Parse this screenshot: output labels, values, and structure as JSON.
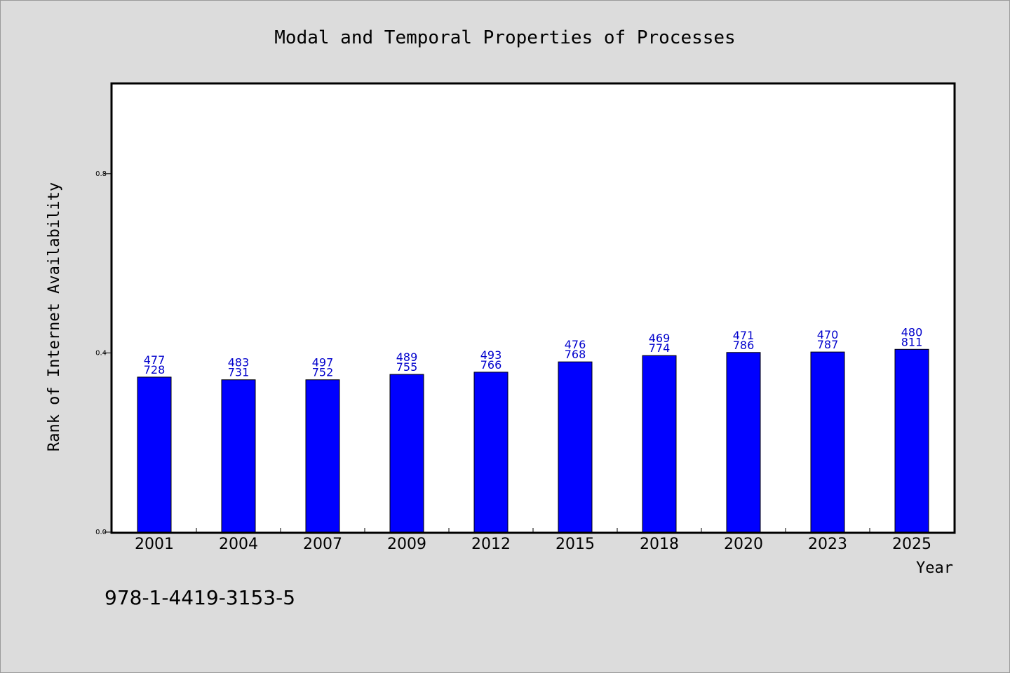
{
  "chart_data": {
    "type": "bar",
    "title": "Modal and Temporal Properties of Processes",
    "xlabel": "Year",
    "ylabel": "Rank of Internet Availability",
    "categories": [
      "2001",
      "2004",
      "2007",
      "2009",
      "2012",
      "2015",
      "2018",
      "2020",
      "2023",
      "2025"
    ],
    "values": [
      0.346,
      0.34,
      0.34,
      0.352,
      0.357,
      0.38,
      0.394,
      0.401,
      0.402,
      0.408
    ],
    "label_top": [
      "477",
      "483",
      "497",
      "489",
      "493",
      "476",
      "469",
      "471",
      "470",
      "480"
    ],
    "label_bottom": [
      "728",
      "731",
      "752",
      "755",
      "766",
      "768",
      "774",
      "786",
      "787",
      "811"
    ],
    "yticks": [
      0.0,
      0.4,
      0.8
    ],
    "ytick_labels": [
      "0.0",
      "0.4",
      "0.8"
    ],
    "ylim": [
      0.0,
      1.0
    ],
    "grid": false,
    "bar_color": "#0000ff",
    "label_color": "#0000cc",
    "background_color": "#dcdcdc",
    "plot_background": "#ffffff"
  },
  "footer": {
    "isbn": "978-1-4419-3153-5"
  }
}
